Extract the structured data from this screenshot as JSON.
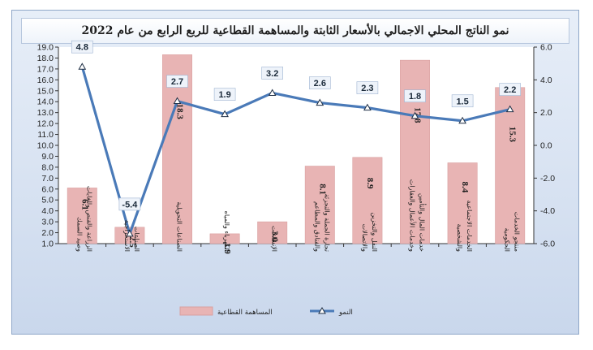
{
  "title": "نمو الناتج المحلي الاجمالي بالأسعار الثابتة والمساهمة القطاعية للربع الرابع من عام 2022",
  "chart_data": {
    "type": "bar+line",
    "categories": [
      "الزراعة والقنص والغابات وصيد السمك",
      "الصناعات الاستخراجية",
      "الصناعات التحويلية",
      "الكهرباء والمياه",
      "الإنشاءات",
      "تجارة الجملة والتجزئة والفنادق والمطاعم",
      "النقل والتخزين والاتصالات",
      "خدمات المال والتأمين وخدمات الأعمال والعقارات",
      "الخدمات الاجتماعية والشخصية",
      "منتجو الخدمات الحكومية"
    ],
    "series": [
      {
        "name": "المساهمة القطاعية",
        "kind": "bar",
        "axis": "left",
        "color": "#e8b4b4",
        "values": [
          6.1,
          2.5,
          18.3,
          1.9,
          3.0,
          8.1,
          8.9,
          17.8,
          8.4,
          15.3
        ],
        "labels": [
          "6.1",
          "2.5",
          "18.3",
          "1.9",
          "3.0",
          "8.1",
          "8.9",
          "17.8",
          "8.4",
          "15.3"
        ]
      },
      {
        "name": "النمو",
        "kind": "line",
        "axis": "right",
        "color": "#4a7ab8",
        "values": [
          4.8,
          -5.4,
          2.7,
          1.9,
          3.2,
          2.6,
          2.3,
          1.8,
          1.5,
          2.2
        ],
        "labels": [
          "4.8",
          "-5.4",
          "2.7",
          "1.9",
          "3.2",
          "2.6",
          "2.3",
          "1.8",
          "1.5",
          "2.2"
        ]
      }
    ],
    "left_axis": {
      "range": [
        1.0,
        19.0
      ],
      "ticks": [
        "1.0",
        "2.0",
        "3.0",
        "4.0",
        "5.0",
        "6.0",
        "7.0",
        "8.0",
        "9.0",
        "10.0",
        "11.0",
        "12.0",
        "13.0",
        "14.0",
        "15.0",
        "16.0",
        "17.0",
        "18.0",
        "19.0"
      ]
    },
    "right_axis": {
      "range": [
        -6.0,
        6.0
      ],
      "ticks": [
        "-6.0",
        "-4.0",
        "-2.0",
        "0.0",
        "2.0",
        "4.0",
        "6.0"
      ]
    },
    "legend": [
      "المساهمة القطاعية",
      "النمو"
    ],
    "legend_position": "bottom",
    "grid": false
  }
}
